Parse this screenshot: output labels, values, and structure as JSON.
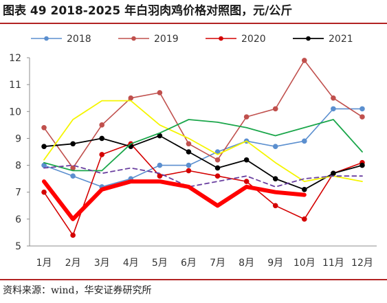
{
  "title": "图表 49 2018-2025 年白羽肉鸡价格对照图，元/公斤",
  "source": "资料来源：wind，华安证券研究所",
  "chart_data": {
    "type": "line",
    "categories": [
      "1月",
      "2月",
      "3月",
      "4月",
      "5月",
      "6月",
      "7月",
      "8月",
      "9月",
      "10月",
      "11月",
      "12月"
    ],
    "ylim": [
      5,
      12
    ],
    "yticks": [
      5,
      6,
      7,
      8,
      9,
      10,
      11,
      12
    ],
    "legend_placement": "top",
    "grid": false,
    "series": [
      {
        "name": "2018",
        "color": "#5b8fcf",
        "width": 1.6,
        "marker": true,
        "dashed": false,
        "in_legend": true,
        "values": [
          8.0,
          7.6,
          7.2,
          7.5,
          8.0,
          8.0,
          8.5,
          8.9,
          8.7,
          8.9,
          10.1,
          10.1
        ]
      },
      {
        "name": "2019",
        "color": "#c0504d",
        "width": 1.6,
        "marker": true,
        "dashed": false,
        "in_legend": true,
        "values": [
          9.4,
          7.9,
          9.5,
          10.5,
          10.7,
          8.8,
          8.2,
          9.8,
          10.1,
          11.9,
          10.5,
          9.8
        ]
      },
      {
        "name": "2020",
        "color": "#d40000",
        "width": 1.6,
        "marker": true,
        "dashed": false,
        "in_legend": true,
        "values": [
          7.0,
          5.4,
          8.4,
          8.8,
          7.6,
          7.8,
          7.6,
          7.4,
          6.5,
          6.0,
          7.7,
          8.1
        ]
      },
      {
        "name": "2021",
        "color": "#000000",
        "width": 1.8,
        "marker": true,
        "dashed": false,
        "in_legend": true,
        "values": [
          8.7,
          8.8,
          9.0,
          8.7,
          9.1,
          8.5,
          7.9,
          8.2,
          7.5,
          7.1,
          7.7,
          8.0
        ]
      },
      {
        "name": "",
        "color": "#f5f500",
        "width": 1.8,
        "marker": false,
        "dashed": false,
        "in_legend": false,
        "values": [
          8.2,
          9.7,
          10.4,
          10.4,
          9.5,
          9.0,
          8.4,
          8.9,
          8.1,
          7.4,
          7.6,
          7.4
        ]
      },
      {
        "name": "",
        "color": "#1aa64a",
        "width": 1.8,
        "marker": false,
        "dashed": false,
        "in_legend": false,
        "values": [
          8.1,
          7.8,
          7.8,
          8.8,
          9.2,
          9.7,
          9.6,
          9.4,
          9.1,
          9.4,
          9.7,
          8.5
        ]
      },
      {
        "name": "",
        "color": "#6a3fa0",
        "width": 1.8,
        "marker": false,
        "dashed": true,
        "in_legend": false,
        "values": [
          7.9,
          8.0,
          7.7,
          7.9,
          7.7,
          7.2,
          7.4,
          7.6,
          7.2,
          7.5,
          7.6,
          7.6
        ]
      },
      {
        "name": "",
        "color": "#ff0000",
        "width": 6,
        "marker": false,
        "dashed": false,
        "in_legend": false,
        "values": [
          7.4,
          6.0,
          7.1,
          7.4,
          7.4,
          7.2,
          6.5,
          7.2,
          7.0,
          6.9,
          null,
          null
        ]
      }
    ]
  }
}
